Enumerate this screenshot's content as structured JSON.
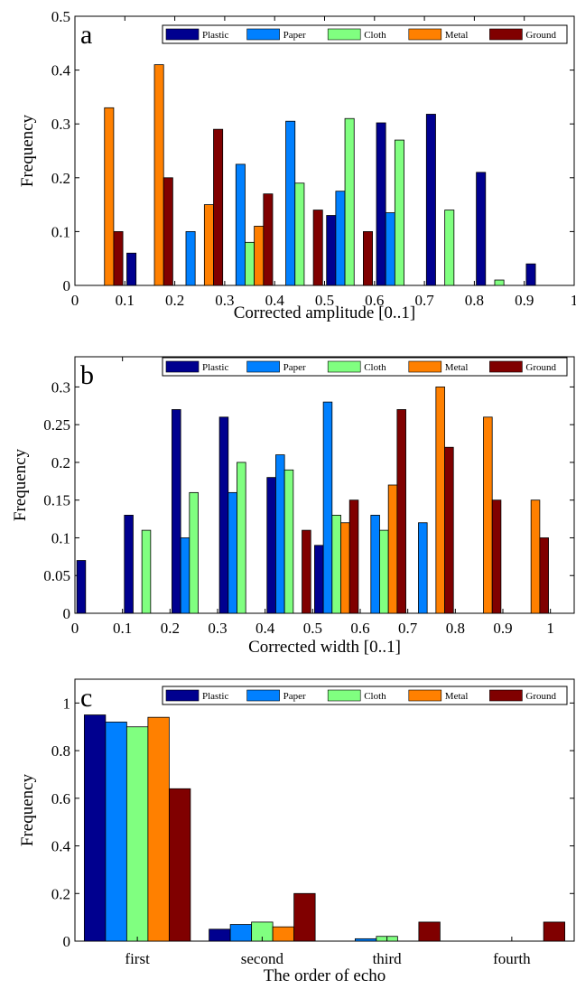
{
  "chart_data": [
    {
      "type": "bar",
      "panel_label": "a",
      "xlabel": "Corrected amplitude [0..1]",
      "ylabel": "Frequency",
      "xlim": [
        0,
        1
      ],
      "ylim": [
        0,
        0.5
      ],
      "x_ticks": [
        "0",
        "0.1",
        "0.2",
        "0.3",
        "0.4",
        "0.5",
        "0.6",
        "0.7",
        "0.8",
        "0.9",
        "1"
      ],
      "y_ticks": [
        "0",
        "0.1",
        "0.2",
        "0.3",
        "0.4",
        "0.5"
      ],
      "bin_centers": [
        0.05,
        0.15,
        0.25,
        0.35,
        0.45,
        0.55,
        0.65,
        0.75,
        0.85,
        0.95
      ],
      "legend_position": "top-right",
      "series": [
        {
          "name": "Plastic",
          "color": "#00008f",
          "values": [
            0,
            0.06,
            0,
            0,
            0,
            0.13,
            0.302,
            0.318,
            0.21,
            0.04
          ]
        },
        {
          "name": "Paper",
          "color": "#0080ff",
          "values": [
            0,
            0,
            0.1,
            0.225,
            0.305,
            0.175,
            0.135,
            0,
            0,
            0
          ]
        },
        {
          "name": "Cloth",
          "color": "#80ff80",
          "values": [
            0,
            0,
            0,
            0.08,
            0.19,
            0.31,
            0.27,
            0.14,
            0.01,
            0
          ]
        },
        {
          "name": "Metal",
          "color": "#ff8000",
          "values": [
            0.33,
            0.41,
            0.15,
            0.11,
            0,
            0,
            0,
            0,
            0,
            0
          ]
        },
        {
          "name": "Ground",
          "color": "#800000",
          "values": [
            0.1,
            0.2,
            0.29,
            0.17,
            0.14,
            0.1,
            0,
            0,
            0,
            0
          ]
        }
      ]
    },
    {
      "type": "bar",
      "panel_label": "b",
      "xlabel": "Corrected width [0..1]",
      "ylabel": "Frequency",
      "xlim": [
        0,
        1.05
      ],
      "ylim": [
        0,
        0.34
      ],
      "x_ticks": [
        "0",
        "0.1",
        "0.2",
        "0.3",
        "0.4",
        "0.5",
        "0.6",
        "0.7",
        "0.8",
        "0.9",
        "1"
      ],
      "y_ticks": [
        "0",
        "0.05",
        "0.1",
        "0.15",
        "0.2",
        "0.25",
        "0.3"
      ],
      "bin_centers": [
        0.05,
        0.15,
        0.25,
        0.35,
        0.45,
        0.55,
        0.65,
        0.75,
        0.85,
        0.95
      ],
      "legend_position": "top-right",
      "series": [
        {
          "name": "Plastic",
          "color": "#00008f",
          "values": [
            0.07,
            0.13,
            0.27,
            0.26,
            0.18,
            0.09,
            0,
            0,
            0,
            0
          ]
        },
        {
          "name": "Paper",
          "color": "#0080ff",
          "values": [
            0,
            0,
            0.1,
            0.16,
            0.21,
            0.28,
            0.13,
            0.12,
            0,
            0
          ]
        },
        {
          "name": "Cloth",
          "color": "#80ff80",
          "values": [
            0,
            0.11,
            0.16,
            0.2,
            0.19,
            0.13,
            0.11,
            0,
            0,
            0
          ]
        },
        {
          "name": "Metal",
          "color": "#ff8000",
          "values": [
            0,
            0,
            0,
            0,
            0,
            0.12,
            0.17,
            0.3,
            0.26,
            0.15
          ]
        },
        {
          "name": "Ground",
          "color": "#800000",
          "values": [
            0,
            0,
            0,
            0,
            0.11,
            0.15,
            0.27,
            0.22,
            0.15,
            0.1
          ]
        }
      ]
    },
    {
      "type": "bar",
      "panel_label": "c",
      "xlabel": "The order of echo",
      "ylabel": "Frequency",
      "ylim": [
        0,
        1.1
      ],
      "categories": [
        "first",
        "second",
        "third",
        "fourth"
      ],
      "y_ticks": [
        "0",
        "0.2",
        "0.4",
        "0.6",
        "0.8",
        "1"
      ],
      "legend_position": "top-right",
      "series": [
        {
          "name": "Plastic",
          "color": "#00008f",
          "values": [
            0.95,
            0.05,
            0,
            0
          ]
        },
        {
          "name": "Paper",
          "color": "#0080ff",
          "values": [
            0.92,
            0.07,
            0.01,
            0
          ]
        },
        {
          "name": "Cloth",
          "color": "#80ff80",
          "values": [
            0.9,
            0.08,
            0.02,
            0
          ]
        },
        {
          "name": "Metal",
          "color": "#ff8000",
          "values": [
            0.94,
            0.06,
            0,
            0
          ]
        },
        {
          "name": "Ground",
          "color": "#800000",
          "values": [
            0.64,
            0.2,
            0.08,
            0.08
          ]
        }
      ]
    }
  ]
}
